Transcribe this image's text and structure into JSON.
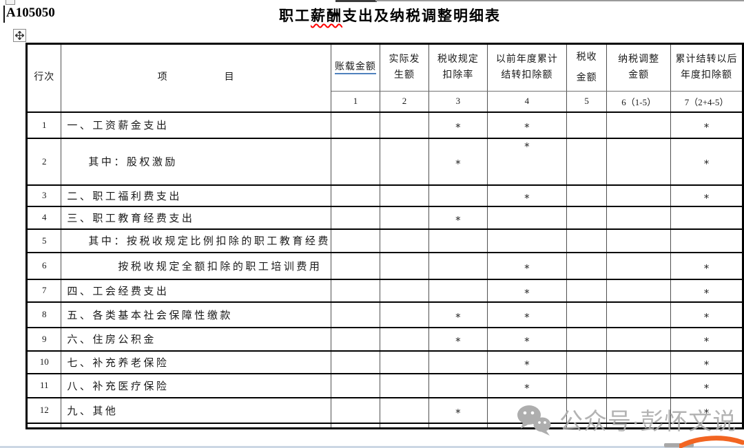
{
  "page": {
    "form_code": "A105050",
    "title_prefix": "职工",
    "title_misspell": "薪酬",
    "title_suffix": "支出及纳税调整明细表"
  },
  "table": {
    "corner": {
      "row_header": "行次",
      "item_header_left": "项",
      "item_header_right": "目"
    },
    "columns": [
      {
        "lines": [
          "账载金额"
        ],
        "num": "1",
        "underlined": true
      },
      {
        "lines": [
          "实际发",
          "生额"
        ],
        "num": "2"
      },
      {
        "lines": [
          "税收规定",
          "扣除率"
        ],
        "num": "3"
      },
      {
        "lines": [
          "以前年度累计",
          "结转扣除额"
        ],
        "num": "4"
      },
      {
        "lines": [
          "税收",
          "金额"
        ],
        "num": "5",
        "spread": true
      },
      {
        "lines": [
          "纳税调整",
          "金额"
        ],
        "num": "6（1-5）"
      },
      {
        "lines": [
          "累计结转以后",
          "年度扣除额"
        ],
        "num": "7（2+4-5）"
      }
    ],
    "star_symbol": "*",
    "rows": [
      {
        "no": "1",
        "item": "一、工资薪金支出",
        "indent": 0,
        "stars": [
          3,
          4,
          7
        ]
      },
      {
        "no": "2",
        "item": "其中：股权激励",
        "indent": 1,
        "stars": [
          3,
          4,
          7
        ],
        "star4_top": true
      },
      {
        "no": "3",
        "item": "二、职工福利费支出",
        "indent": 0,
        "stars": [
          4,
          7
        ]
      },
      {
        "no": "4",
        "item": "三、职工教育经费支出",
        "indent": 0,
        "stars": [
          3
        ]
      },
      {
        "no": "5",
        "item": "其中：按税收规定比例扣除的职工教育经费",
        "indent": 1,
        "stars": []
      },
      {
        "no": "6",
        "item": "按税收规定全额扣除的职工培训费用",
        "indent": 2,
        "stars": [
          4,
          7
        ]
      },
      {
        "no": "7",
        "item": "四、工会经费支出",
        "indent": 0,
        "stars": [
          4,
          7
        ]
      },
      {
        "no": "8",
        "item": "五、各类基本社会保障性缴款",
        "indent": 0,
        "stars": [
          3,
          4,
          7
        ]
      },
      {
        "no": "9",
        "item": "六、住房公积金",
        "indent": 0,
        "stars": [
          3,
          4,
          7
        ]
      },
      {
        "no": "10",
        "item": "七、补充养老保险",
        "indent": 0,
        "stars": [
          4,
          7
        ]
      },
      {
        "no": "11",
        "item": "八、补充医疗保险",
        "indent": 0,
        "stars": [
          4,
          7
        ]
      },
      {
        "no": "12",
        "item": "九、其他",
        "indent": 0,
        "stars": [
          3,
          4,
          7
        ]
      }
    ]
  },
  "watermark": {
    "label": "公众号·彭怀文说",
    "icon": "wechat-icon"
  },
  "colors": {
    "border": "#000000",
    "link_underline": "#4f81bd",
    "spellcheck_wave": "#ff0000",
    "watermark_gray": "#ababab",
    "swoosh_orange": "#f26522",
    "bottom_strip": "#ccd7e4"
  }
}
